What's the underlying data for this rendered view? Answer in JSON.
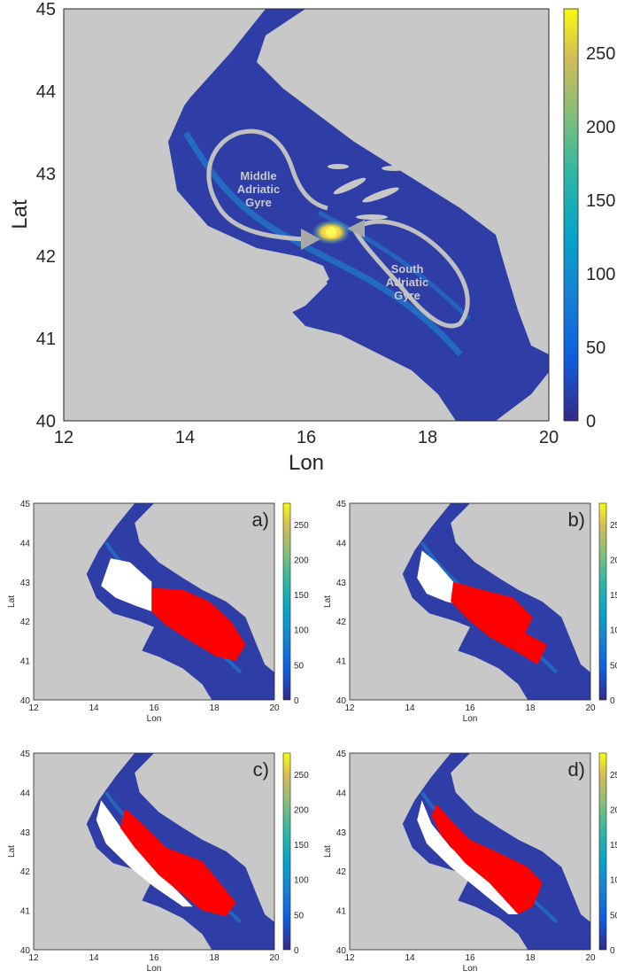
{
  "main_map": {
    "xlabel": "Lon",
    "ylabel": "Lat",
    "x_ticks": [
      "12",
      "14",
      "16",
      "18",
      "20"
    ],
    "y_ticks": [
      "40",
      "41",
      "42",
      "43",
      "44",
      "45"
    ],
    "colorbar_ticks": [
      "0",
      "50",
      "100",
      "150",
      "200",
      "250"
    ],
    "colorbar_range": [
      0,
      280
    ],
    "annotations": {
      "middle_line1": "Middle",
      "middle_line2": "Adriatic",
      "middle_line3": "Gyre",
      "south_line1": "South",
      "south_line2": "Adriatic",
      "south_line3": "Gyre"
    }
  },
  "panels": [
    {
      "label": "a)",
      "xlabel": "Lon",
      "ylabel": "Lat"
    },
    {
      "label": "b)",
      "xlabel": "Lon",
      "ylabel": "Lat"
    },
    {
      "label": "c)",
      "xlabel": "Lon",
      "ylabel": "Lat"
    },
    {
      "label": "d)",
      "xlabel": "Lon",
      "ylabel": "Lat"
    }
  ],
  "panel_x_ticks": [
    "12",
    "14",
    "16",
    "18",
    "20"
  ],
  "panel_y_ticks": [
    "40",
    "41",
    "42",
    "43",
    "44",
    "45"
  ],
  "panel_colorbar_ticks": [
    "0",
    "50",
    "100",
    "150",
    "200",
    "250"
  ],
  "colors": {
    "land": "#c8c8c8",
    "sea": "#2e3ea6",
    "hotspot": "#ffe84a",
    "south_region": "#ff0000",
    "middle_region": "#ffffff",
    "gyre_arrow": "#c0c0c0"
  }
}
